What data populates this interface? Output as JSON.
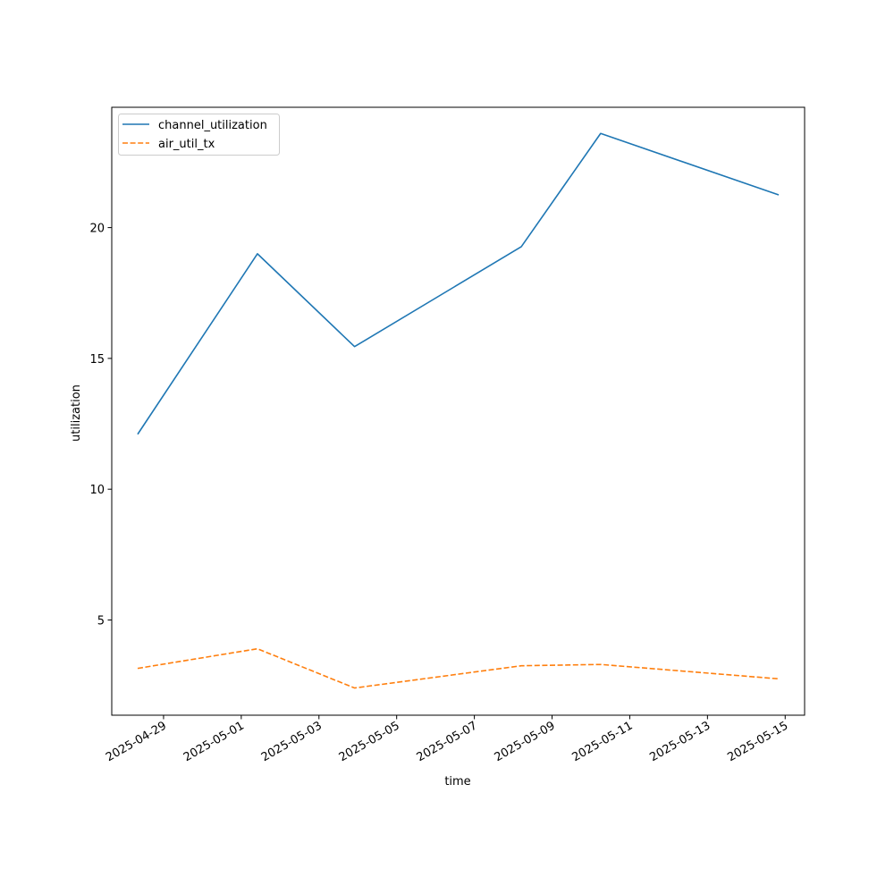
{
  "chart_data": {
    "type": "line",
    "title": "",
    "xlabel": "time",
    "ylabel": "utilization",
    "x": [
      "2025-04-28 08:00",
      "2025-05-01 10:00",
      "2025-05-03 22:00",
      "2025-05-08 05:00",
      "2025-05-10 06:00",
      "2025-05-14 20:00"
    ],
    "series": [
      {
        "name": "channel_utilization",
        "color": "#1f77b4",
        "style": "solid",
        "values": [
          12.1,
          19.0,
          15.45,
          19.27,
          23.6,
          21.25
        ]
      },
      {
        "name": "air_util_tx",
        "color": "#ff7f0e",
        "style": "dashed",
        "values": [
          3.15,
          3.9,
          2.4,
          3.25,
          3.3,
          2.75
        ]
      }
    ],
    "xlim": [
      "2025-04-27 16:00",
      "2025-05-15 12:00"
    ],
    "ylim": [
      1.36,
      24.6
    ],
    "xticks": [
      "2025-04-29",
      "2025-05-01",
      "2025-05-03",
      "2025-05-05",
      "2025-05-07",
      "2025-05-09",
      "2025-05-11",
      "2025-05-13",
      "2025-05-15"
    ],
    "yticks": [
      5,
      10,
      15,
      20
    ],
    "grid": false,
    "legend_position": "upper-left"
  }
}
